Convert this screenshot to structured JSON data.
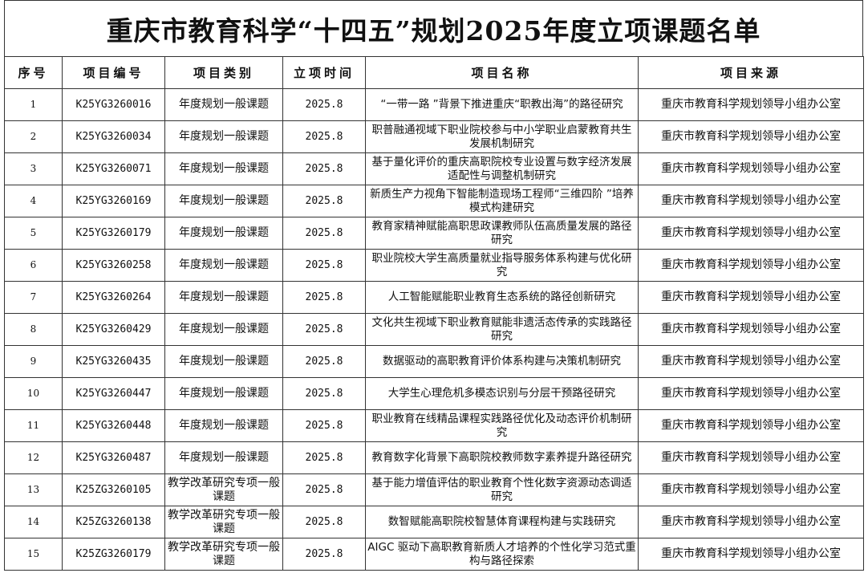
{
  "title": "重庆市教育科学“十四五”规划2025年度立项课题名单",
  "headers": [
    "序号",
    "项目编号",
    "项目类别",
    "立项时间",
    "项目名称",
    "项目来源"
  ],
  "rows": [
    {
      "no": "1",
      "code": "K25YG3260016",
      "category": "年度规划一般课题",
      "date": "2025.8",
      "name": "“一带一路 ”背景下推进重庆“职教出海”的路径研究",
      "source": "重庆市教育科学规划领导小组办公室"
    },
    {
      "no": "2",
      "code": "K25YG3260034",
      "category": "年度规划一般课题",
      "date": "2025.8",
      "name": "职普融通视域下职业院校参与中小学职业启蒙教育共生发展机制研究",
      "source": "重庆市教育科学规划领导小组办公室"
    },
    {
      "no": "3",
      "code": "K25YG3260071",
      "category": "年度规划一般课题",
      "date": "2025.8",
      "name": "基于量化评价的重庆高职院校专业设置与数字经济发展适配性与调整机制研究",
      "source": "重庆市教育科学规划领导小组办公室"
    },
    {
      "no": "4",
      "code": "K25YG3260169",
      "category": "年度规划一般课题",
      "date": "2025.8",
      "name": "新质生产力视角下智能制造现场工程师“三维四阶 ”培养模式构建研究",
      "source": "重庆市教育科学规划领导小组办公室"
    },
    {
      "no": "5",
      "code": "K25YG3260179",
      "category": "年度规划一般课题",
      "date": "2025.8",
      "name": "教育家精神赋能高职思政课教师队伍高质量发展的路径研究",
      "source": "重庆市教育科学规划领导小组办公室"
    },
    {
      "no": "6",
      "code": "K25YG3260258",
      "category": "年度规划一般课题",
      "date": "2025.8",
      "name": "职业院校大学生高质量就业指导服务体系构建与优化研究",
      "source": "重庆市教育科学规划领导小组办公室"
    },
    {
      "no": "7",
      "code": "K25YG3260264",
      "category": "年度规划一般课题",
      "date": "2025.8",
      "name": "人工智能赋能职业教育生态系统的路径创新研究",
      "source": "重庆市教育科学规划领导小组办公室"
    },
    {
      "no": "8",
      "code": "K25YG3260429",
      "category": "年度规划一般课题",
      "date": "2025.8",
      "name": "文化共生视域下职业教育赋能非遗活态传承的实践路径研究",
      "source": "重庆市教育科学规划领导小组办公室"
    },
    {
      "no": "9",
      "code": "K25YG3260435",
      "category": "年度规划一般课题",
      "date": "2025.8",
      "name": "数据驱动的高职教育评价体系构建与决策机制研究",
      "source": "重庆市教育科学规划领导小组办公室"
    },
    {
      "no": "10",
      "code": "K25YG3260447",
      "category": "年度规划一般课题",
      "date": "2025.8",
      "name": "大学生心理危机多模态识别与分层干预路径研究",
      "source": "重庆市教育科学规划领导小组办公室"
    },
    {
      "no": "11",
      "code": "K25YG3260448",
      "category": "年度规划一般课题",
      "date": "2025.8",
      "name": "职业教育在线精品课程实践路径优化及动态评价机制研究",
      "source": "重庆市教育科学规划领导小组办公室"
    },
    {
      "no": "12",
      "code": "K25YG3260487",
      "category": "年度规划一般课题",
      "date": "2025.8",
      "name": "教育数字化背景下高职院校教师数字素养提升路径研究",
      "source": "重庆市教育科学规划领导小组办公室"
    },
    {
      "no": "13",
      "code": "K25ZG3260105",
      "category": "教学改革研究专项一般课题",
      "date": "2025.8",
      "name": "基于能力增值评估的职业教育个性化数字资源动态调适研究",
      "source": "重庆市教育科学规划领导小组办公室"
    },
    {
      "no": "14",
      "code": "K25ZG3260138",
      "category": "教学改革研究专项一般课题",
      "date": "2025.8",
      "name": "数智赋能高职院校智慧体育课程构建与实践研究",
      "source": "重庆市教育科学规划领导小组办公室"
    },
    {
      "no": "15",
      "code": "K25ZG3260179",
      "category": "教学改革研究专项一般课题",
      "date": "2025.8",
      "name": "AIGC 驱动下高职教育新质人才培养的个性化学习范式重构与路径探索",
      "source": "重庆市教育科学规划领导小组办公室"
    }
  ]
}
